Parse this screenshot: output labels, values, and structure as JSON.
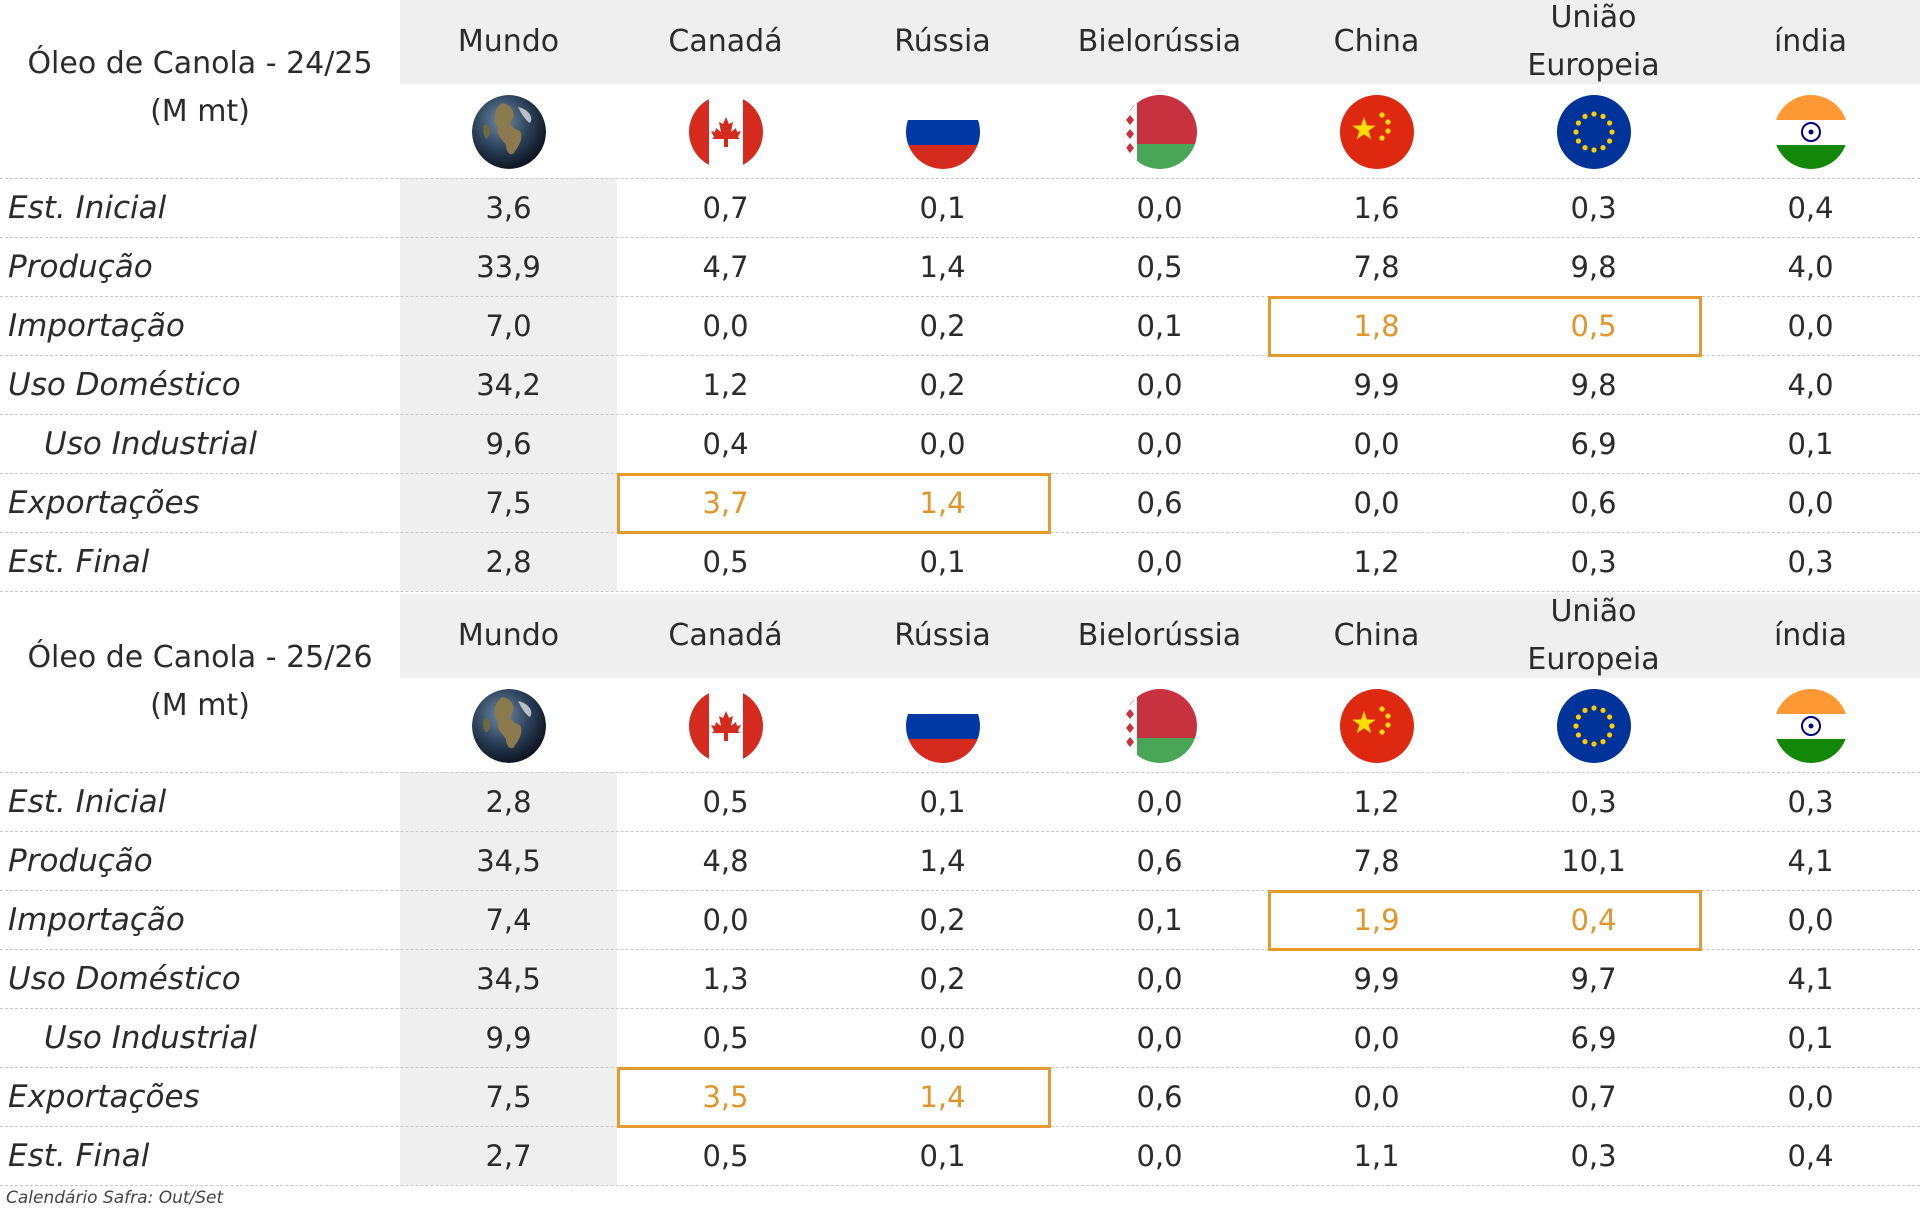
{
  "countries": [
    "Mundo",
    "Canadá",
    "Rússia",
    "Bielorússia",
    "China",
    "União Europeia",
    "índia"
  ],
  "flag_icons": [
    "globe-icon",
    "canada-flag-icon",
    "russia-flag-icon",
    "belarus-flag-icon",
    "china-flag-icon",
    "eu-flag-icon",
    "india-flag-icon"
  ],
  "accent_color": "#e69a2e",
  "tables": [
    {
      "title": "Óleo de Canola - 24/25",
      "unit": "(M mt)",
      "rows": [
        {
          "label": "Est. Inicial",
          "indent": false,
          "values": [
            "3,6",
            "0,7",
            "0,1",
            "0,0",
            "1,6",
            "0,3",
            "0,4"
          ]
        },
        {
          "label": "Produção",
          "indent": false,
          "values": [
            "33,9",
            "4,7",
            "1,4",
            "0,5",
            "7,8",
            "9,8",
            "4,0"
          ]
        },
        {
          "label": "Importação",
          "indent": false,
          "values": [
            "7,0",
            "0,0",
            "0,2",
            "0,1",
            "1,8",
            "0,5",
            "0,0"
          ]
        },
        {
          "label": "Uso Doméstico",
          "indent": false,
          "values": [
            "34,2",
            "1,2",
            "0,2",
            "0,0",
            "9,9",
            "9,8",
            "4,0"
          ]
        },
        {
          "label": "Uso Industrial",
          "indent": true,
          "values": [
            "9,6",
            "0,4",
            "0,0",
            "0,0",
            "0,0",
            "6,9",
            "0,1"
          ]
        },
        {
          "label": "Exportações",
          "indent": false,
          "values": [
            "7,5",
            "3,7",
            "1,4",
            "0,6",
            "0,0",
            "0,6",
            "0,0"
          ]
        },
        {
          "label": "Est. Final",
          "indent": false,
          "values": [
            "2,8",
            "0,5",
            "0,1",
            "0,0",
            "1,2",
            "0,3",
            "0,3"
          ]
        }
      ]
    },
    {
      "title": "Óleo de Canola - 25/26",
      "unit": "(M mt)",
      "rows": [
        {
          "label": "Est. Inicial",
          "indent": false,
          "values": [
            "2,8",
            "0,5",
            "0,1",
            "0,0",
            "1,2",
            "0,3",
            "0,3"
          ]
        },
        {
          "label": "Produção",
          "indent": false,
          "values": [
            "34,5",
            "4,8",
            "1,4",
            "0,6",
            "7,8",
            "10,1",
            "4,1"
          ]
        },
        {
          "label": "Importação",
          "indent": false,
          "values": [
            "7,4",
            "0,0",
            "0,2",
            "0,1",
            "1,9",
            "0,4",
            "0,0"
          ]
        },
        {
          "label": "Uso Doméstico",
          "indent": false,
          "values": [
            "34,5",
            "1,3",
            "0,2",
            "0,0",
            "9,9",
            "9,7",
            "4,1"
          ]
        },
        {
          "label": "Uso Industrial",
          "indent": true,
          "values": [
            "9,9",
            "0,5",
            "0,0",
            "0,0",
            "0,0",
            "6,9",
            "0,1"
          ]
        },
        {
          "label": "Exportações",
          "indent": false,
          "values": [
            "7,5",
            "3,5",
            "1,4",
            "0,6",
            "0,0",
            "0,7",
            "0,0"
          ]
        },
        {
          "label": "Est. Final",
          "indent": false,
          "values": [
            "2,7",
            "0,5",
            "0,1",
            "0,0",
            "1,1",
            "0,3",
            "0,4"
          ]
        }
      ]
    }
  ],
  "highlights": [
    {
      "row": 2,
      "cols": [
        4,
        5
      ]
    },
    {
      "row": 5,
      "cols": [
        1,
        2
      ]
    }
  ],
  "footnote": "Calendário Safra: Out/Set"
}
